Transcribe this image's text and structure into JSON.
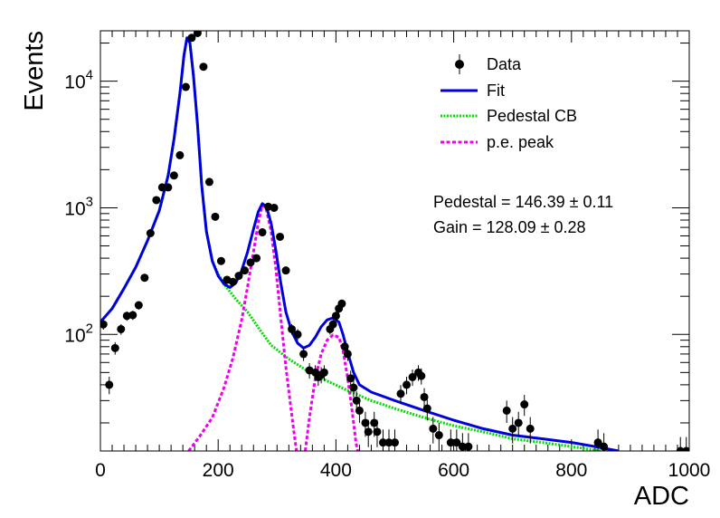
{
  "chart_data": {
    "type": "scatter",
    "title": "",
    "xlabel": "ADC",
    "ylabel": "Events",
    "xlim": [
      0,
      1000
    ],
    "ylim": [
      12,
      25000
    ],
    "y_scale": "log",
    "x_ticks": [
      {
        "value": 0,
        "label": "0"
      },
      {
        "value": 200,
        "label": "200"
      },
      {
        "value": 400,
        "label": "400"
      },
      {
        "value": 600,
        "label": "600"
      },
      {
        "value": 800,
        "label": "800"
      },
      {
        "value": 1000,
        "label": "1000"
      }
    ],
    "y_ticks": [
      {
        "value": 100,
        "base": "10",
        "exp": "2"
      },
      {
        "value": 1000,
        "base": "10",
        "exp": "3"
      },
      {
        "value": 10000,
        "base": "10",
        "exp": "4"
      }
    ],
    "grid": false,
    "legend_position": "top-right",
    "legend": [
      {
        "label": "Data",
        "kind": "marker",
        "color": "#000000"
      },
      {
        "label": "Fit",
        "kind": "solid",
        "color": "#0000dd"
      },
      {
        "label": "Pedestal CB",
        "kind": "dotted",
        "color": "#00dd00"
      },
      {
        "label": "p.e. peak",
        "kind": "dashed",
        "color": "#ee00ee"
      }
    ],
    "annotations": {
      "pedestal": "Pedestal = 146.39 ± 0.11",
      "gain": "Gain = 128.09 ± 0.28"
    },
    "series": [
      {
        "name": "Data",
        "style": "points",
        "color": "#000000",
        "points": [
          [
            5,
            120
          ],
          [
            15,
            40
          ],
          [
            25,
            78
          ],
          [
            35,
            110
          ],
          [
            45,
            140
          ],
          [
            55,
            142
          ],
          [
            65,
            170
          ],
          [
            75,
            280
          ],
          [
            85,
            630
          ],
          [
            95,
            1150
          ],
          [
            105,
            1450
          ],
          [
            115,
            1450
          ],
          [
            125,
            1800
          ],
          [
            135,
            2600
          ],
          [
            145,
            9000
          ],
          [
            155,
            22000
          ],
          [
            165,
            24000
          ],
          [
            175,
            13000
          ],
          [
            185,
            1600
          ],
          [
            195,
            850
          ],
          [
            205,
            380
          ],
          [
            215,
            270
          ],
          [
            225,
            260
          ],
          [
            235,
            290
          ],
          [
            245,
            320
          ],
          [
            255,
            370
          ],
          [
            265,
            400
          ],
          [
            275,
            640
          ],
          [
            285,
            1020
          ],
          [
            295,
            1000
          ],
          [
            305,
            590
          ],
          [
            315,
            320
          ],
          [
            325,
            110
          ],
          [
            335,
            100
          ],
          [
            345,
            70
          ],
          [
            355,
            52
          ],
          [
            365,
            50
          ],
          [
            370,
            46
          ],
          [
            375,
            48
          ],
          [
            380,
            50
          ],
          [
            390,
            110
          ],
          [
            395,
            120
          ],
          [
            400,
            140
          ],
          [
            405,
            160
          ],
          [
            410,
            175
          ],
          [
            415,
            80
          ],
          [
            420,
            70
          ],
          [
            425,
            45
          ],
          [
            430,
            38
          ],
          [
            435,
            30
          ],
          [
            440,
            25
          ],
          [
            450,
            20
          ],
          [
            455,
            17
          ],
          [
            465,
            20
          ],
          [
            470,
            17
          ],
          [
            480,
            14
          ],
          [
            490,
            14
          ],
          [
            500,
            14
          ],
          [
            510,
            34
          ],
          [
            520,
            40
          ],
          [
            530,
            46
          ],
          [
            540,
            50
          ],
          [
            545,
            47
          ],
          [
            550,
            32
          ],
          [
            555,
            26
          ],
          [
            565,
            18
          ],
          [
            575,
            16
          ],
          [
            595,
            14
          ],
          [
            605,
            14
          ],
          [
            615,
            13
          ],
          [
            625,
            13
          ],
          [
            690,
            25
          ],
          [
            700,
            18
          ],
          [
            710,
            20
          ],
          [
            720,
            28
          ],
          [
            730,
            18
          ],
          [
            845,
            14
          ],
          [
            855,
            13
          ],
          [
            985,
            12
          ],
          [
            995,
            12
          ]
        ]
      },
      {
        "name": "Fit",
        "style": "solid",
        "color": "#0000dd",
        "points": [
          [
            0,
            125
          ],
          [
            20,
            160
          ],
          [
            40,
            230
          ],
          [
            60,
            340
          ],
          [
            80,
            550
          ],
          [
            100,
            950
          ],
          [
            115,
            1800
          ],
          [
            125,
            3500
          ],
          [
            135,
            8000
          ],
          [
            142,
            16000
          ],
          [
            147,
            22000
          ],
          [
            152,
            20000
          ],
          [
            158,
            11000
          ],
          [
            165,
            4500
          ],
          [
            172,
            1500
          ],
          [
            180,
            650
          ],
          [
            190,
            380
          ],
          [
            200,
            290
          ],
          [
            210,
            250
          ],
          [
            220,
            235
          ],
          [
            230,
            255
          ],
          [
            240,
            320
          ],
          [
            250,
            450
          ],
          [
            260,
            680
          ],
          [
            268,
            930
          ],
          [
            275,
            1080
          ],
          [
            282,
            1020
          ],
          [
            290,
            750
          ],
          [
            298,
            460
          ],
          [
            306,
            260
          ],
          [
            315,
            150
          ],
          [
            325,
            105
          ],
          [
            335,
            85
          ],
          [
            345,
            78
          ],
          [
            355,
            82
          ],
          [
            365,
            95
          ],
          [
            375,
            115
          ],
          [
            385,
            130
          ],
          [
            395,
            135
          ],
          [
            405,
            125
          ],
          [
            412,
            100
          ],
          [
            420,
            72
          ],
          [
            430,
            50
          ],
          [
            440,
            40
          ],
          [
            460,
            35
          ],
          [
            500,
            30
          ],
          [
            550,
            25
          ],
          [
            600,
            21
          ],
          [
            650,
            18
          ],
          [
            700,
            16
          ],
          [
            750,
            15
          ],
          [
            800,
            14
          ],
          [
            840,
            13
          ],
          [
            880,
            12
          ]
        ]
      },
      {
        "name": "Pedestal CB",
        "style": "dotted",
        "color": "#00dd00",
        "points": [
          [
            0,
            125
          ],
          [
            20,
            160
          ],
          [
            40,
            230
          ],
          [
            60,
            340
          ],
          [
            80,
            550
          ],
          [
            100,
            950
          ],
          [
            115,
            1800
          ],
          [
            125,
            3500
          ],
          [
            135,
            8000
          ],
          [
            142,
            16000
          ],
          [
            147,
            22000
          ],
          [
            152,
            20000
          ],
          [
            158,
            11000
          ],
          [
            165,
            4500
          ],
          [
            172,
            1500
          ],
          [
            180,
            650
          ],
          [
            190,
            380
          ],
          [
            200,
            300
          ],
          [
            210,
            250
          ],
          [
            230,
            190
          ],
          [
            250,
            150
          ],
          [
            270,
            110
          ],
          [
            290,
            82
          ],
          [
            320,
            64
          ],
          [
            350,
            52
          ],
          [
            380,
            44
          ],
          [
            420,
            36
          ],
          [
            460,
            30
          ],
          [
            500,
            26
          ],
          [
            550,
            22
          ],
          [
            600,
            19
          ],
          [
            650,
            17
          ],
          [
            700,
            15
          ],
          [
            750,
            14
          ],
          [
            800,
            13
          ],
          [
            850,
            12
          ]
        ]
      },
      {
        "name": "p.e. peak",
        "style": "dashed",
        "color": "#ee00ee",
        "points": [
          [
            150,
            12
          ],
          [
            170,
            16
          ],
          [
            190,
            22
          ],
          [
            210,
            38
          ],
          [
            225,
            65
          ],
          [
            240,
            130
          ],
          [
            250,
            240
          ],
          [
            260,
            450
          ],
          [
            268,
            760
          ],
          [
            275,
            1050
          ],
          [
            282,
            960
          ],
          [
            290,
            650
          ],
          [
            298,
            330
          ],
          [
            306,
            140
          ],
          [
            315,
            55
          ],
          [
            322,
            30
          ],
          [
            328,
            18
          ],
          [
            333,
            12
          ]
        ]
      },
      {
        "name": "p.e. peak",
        "style": "dashed",
        "color": "#ee00ee",
        "points": [
          [
            348,
            12
          ],
          [
            355,
            22
          ],
          [
            365,
            45
          ],
          [
            375,
            70
          ],
          [
            385,
            90
          ],
          [
            395,
            99
          ],
          [
            405,
            95
          ],
          [
            412,
            75
          ],
          [
            420,
            45
          ],
          [
            428,
            24
          ],
          [
            434,
            14
          ],
          [
            437,
            12
          ]
        ]
      }
    ]
  }
}
